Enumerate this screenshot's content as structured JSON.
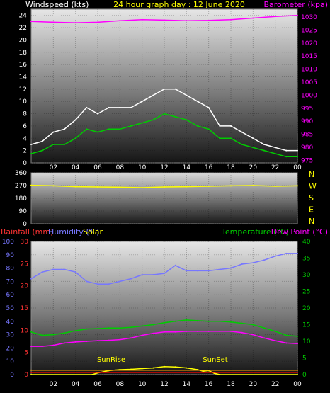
{
  "chart_data": [
    {
      "type": "line",
      "title": "24 hour graph day : 12 June 2020",
      "ylabel_left": "Windspeed (kts)",
      "ylabel_right": "Barometer (kpa)",
      "x_ticks": [
        "02",
        "04",
        "06",
        "08",
        "10",
        "12",
        "14",
        "16",
        "18",
        "20",
        "22",
        "00"
      ],
      "left_ticks": [
        "0",
        "2",
        "4",
        "6",
        "8",
        "10",
        "12",
        "14",
        "16",
        "18",
        "20",
        "22",
        "24"
      ],
      "right_ticks": [
        "975",
        "980",
        "985",
        "990",
        "995",
        "1000",
        "1005",
        "1010",
        "1015",
        "1020",
        "1025",
        "1030"
      ],
      "ylim_left": [
        0,
        25
      ],
      "ylim_right": [
        974,
        1033
      ],
      "series": [
        {
          "color": "#ff00ff",
          "y_axis": "right",
          "x": [
            0,
            2,
            4,
            6,
            8,
            10,
            12,
            14,
            16,
            18,
            20,
            22,
            24
          ],
          "values": [
            1028.3,
            1028.0,
            1027.8,
            1028.0,
            1028.6,
            1029.0,
            1028.8,
            1028.6,
            1028.7,
            1029.0,
            1029.6,
            1030.2,
            1030.6
          ]
        },
        {
          "color": "#ffffff",
          "y_axis": "left",
          "x": [
            0,
            1,
            2,
            3,
            4,
            5,
            6,
            7,
            8,
            9,
            10,
            11,
            12,
            13,
            14,
            15,
            16,
            17,
            18,
            19,
            20,
            21,
            22,
            23,
            24
          ],
          "values": [
            3,
            3.5,
            5,
            5.5,
            7,
            9,
            8,
            9,
            9,
            9,
            10,
            11,
            12,
            12,
            11,
            10,
            9,
            6,
            6,
            5,
            4,
            3,
            2.5,
            2,
            2
          ]
        },
        {
          "color": "#00cc00",
          "y_axis": "left",
          "x": [
            0,
            1,
            2,
            3,
            4,
            5,
            6,
            7,
            8,
            9,
            10,
            11,
            12,
            13,
            14,
            15,
            16,
            17,
            18,
            19,
            20,
            21,
            22,
            23,
            24
          ],
          "values": [
            1.5,
            2,
            3,
            3,
            4,
            5.5,
            5,
            5.5,
            5.5,
            6,
            6.5,
            7,
            8,
            7.5,
            7,
            6,
            5.5,
            4,
            4,
            3,
            2.5,
            2,
            1.5,
            1,
            1
          ]
        }
      ]
    },
    {
      "type": "line",
      "x_ticks": [
        "02",
        "04",
        "06",
        "08",
        "10",
        "12",
        "14",
        "16",
        "18",
        "20",
        "22",
        "00"
      ],
      "left_ticks": [
        "0",
        "90",
        "180",
        "270",
        "360"
      ],
      "right_ticks": [
        "N",
        "W",
        "S",
        "E",
        "N"
      ],
      "ylim": [
        0,
        360
      ],
      "series": [
        {
          "color": "#ffff00",
          "x": [
            0,
            2,
            4,
            6,
            8,
            10,
            12,
            14,
            16,
            18,
            20,
            22,
            24
          ],
          "values": [
            272,
            268,
            262,
            260,
            258,
            255,
            260,
            262,
            265,
            268,
            270,
            265,
            268
          ]
        }
      ]
    },
    {
      "type": "line",
      "ylabel_left": "Rainfall (mm)",
      "ylabel_left2": "Humidity (%)",
      "label_solar": "Solar",
      "ylabel_right": "Temperature (°C)",
      "ylabel_right2": "Dew Point (°C)",
      "x_ticks": [
        "02",
        "04",
        "06",
        "08",
        "10",
        "12",
        "14",
        "16",
        "18",
        "20",
        "22",
        "00"
      ],
      "humidity_ticks": [
        "0",
        "10",
        "20",
        "30",
        "40",
        "50",
        "60",
        "70",
        "80",
        "90",
        "100"
      ],
      "rain_ticks": [
        "0",
        "5",
        "10",
        "15",
        "20",
        "25",
        "30"
      ],
      "temp_ticks": [
        "0",
        "5",
        "10",
        "15",
        "20",
        "25",
        "30",
        "35",
        "40"
      ],
      "ylim_humidity": [
        0,
        100
      ],
      "ylim_rain": [
        0,
        30
      ],
      "ylim_temp": [
        0,
        40
      ],
      "annotations": [
        "SunRise",
        "SunSet"
      ],
      "series": [
        {
          "color": "#7777ff",
          "y_axis": "humidity",
          "x": [
            0,
            1,
            2,
            3,
            4,
            5,
            6,
            7,
            8,
            9,
            10,
            11,
            12,
            13,
            14,
            15,
            16,
            17,
            18,
            19,
            20,
            21,
            22,
            23,
            24
          ],
          "values": [
            72,
            77,
            79,
            79,
            77,
            70,
            68,
            68,
            70,
            72,
            75,
            75,
            76,
            82,
            78,
            78,
            78,
            79,
            80,
            83,
            84,
            86,
            89,
            91,
            91
          ]
        },
        {
          "color": "#00cc00",
          "y_axis": "temp",
          "x": [
            0,
            1,
            2,
            3,
            4,
            5,
            6,
            7,
            8,
            9,
            10,
            11,
            12,
            13,
            14,
            15,
            16,
            17,
            18,
            19,
            20,
            21,
            22,
            23,
            24
          ],
          "values": [
            12.8,
            11.8,
            12.0,
            12.5,
            13.2,
            13.7,
            13.8,
            14.0,
            14.0,
            14.2,
            14.6,
            15.0,
            15.6,
            16.0,
            16.4,
            16.2,
            16.0,
            16.0,
            15.8,
            15.4,
            15.0,
            14.0,
            13.0,
            11.8,
            11.5
          ]
        },
        {
          "color": "#ff00ff",
          "y_axis": "temp",
          "x": [
            0,
            1,
            2,
            3,
            4,
            5,
            6,
            7,
            8,
            9,
            10,
            11,
            12,
            13,
            14,
            15,
            16,
            17,
            18,
            19,
            20,
            21,
            22,
            23,
            24
          ],
          "values": [
            8.5,
            8.5,
            8.8,
            9.5,
            9.8,
            10.0,
            10.2,
            10.3,
            10.5,
            11.0,
            11.8,
            12.4,
            12.8,
            12.8,
            13.0,
            13.0,
            13.0,
            13.0,
            13.0,
            12.6,
            12.0,
            11.0,
            10.2,
            9.5,
            9.3
          ]
        },
        {
          "color": "#ffff00",
          "y_axis": "temp",
          "x": [
            0,
            5.5,
            6,
            7,
            8,
            9,
            10,
            11,
            12,
            13,
            14,
            15,
            15.5,
            16,
            16.5,
            17,
            24
          ],
          "values": [
            0,
            0,
            0.5,
            1.2,
            1.5,
            1.6,
            1.8,
            2.0,
            2.4,
            2.3,
            2.0,
            1.5,
            1.0,
            1.2,
            0.4,
            0,
            0
          ]
        },
        {
          "color": "#ff0000",
          "y_axis": "rain",
          "x": [
            0,
            24
          ],
          "values": [
            0.5,
            0.5
          ]
        },
        {
          "color": "#ffa500",
          "y_axis": "rain",
          "x": [
            0,
            24
          ],
          "values": [
            1.0,
            1.0
          ]
        }
      ]
    }
  ]
}
